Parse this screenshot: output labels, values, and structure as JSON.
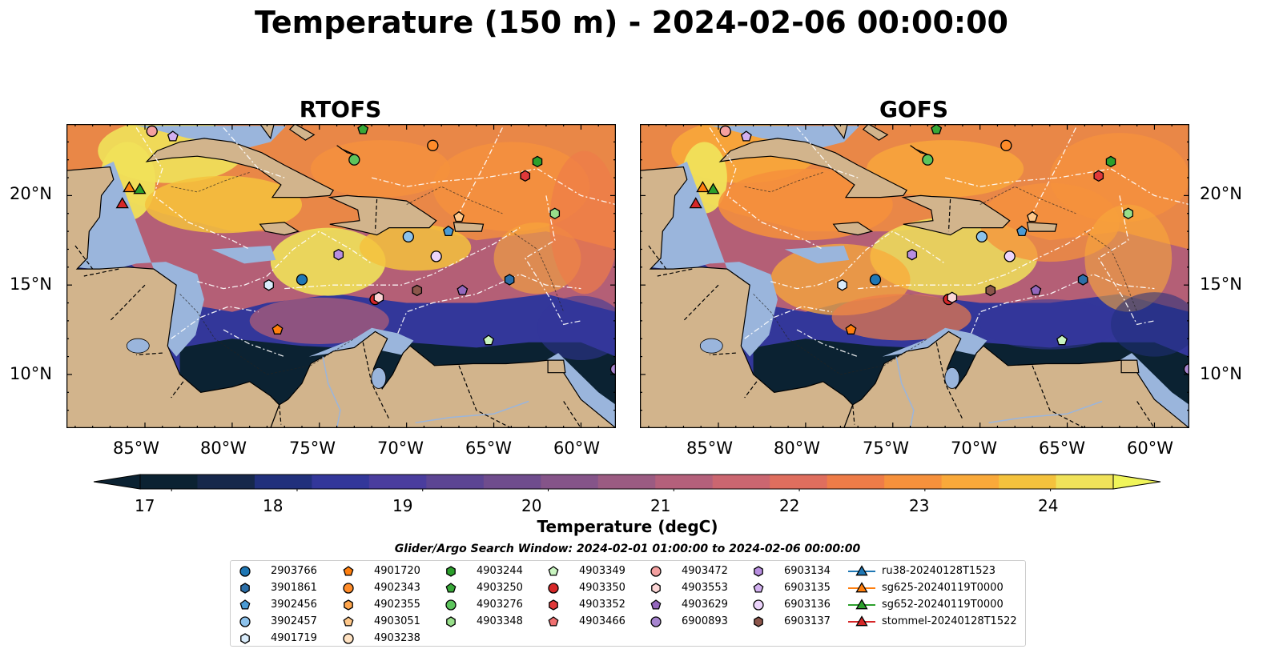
{
  "figure": {
    "title": "Temperature (150 m) - 2024-02-06 00:00:00"
  },
  "panels": [
    {
      "title": "RTOFS"
    },
    {
      "title": "GOFS"
    }
  ],
  "map": {
    "lon_range": [
      -89.5,
      -58.0
    ],
    "lat_range": [
      7.0,
      24.0
    ],
    "lon_ticks": [
      "85°W",
      "80°W",
      "75°W",
      "70°W",
      "65°W",
      "60°W"
    ],
    "lat_ticks": [
      "20°N",
      "15°N",
      "10°N"
    ],
    "land_color": "#d2b48c",
    "shelf_color": "#9ab5dc",
    "deep_color": "#071f2e"
  },
  "colorbar": {
    "label": "Temperature (degC)",
    "ticks": [
      "17",
      "18",
      "19",
      "20",
      "21",
      "22",
      "23",
      "24"
    ],
    "range": [
      16.75,
      24.5
    ],
    "colors": [
      "#0b2232",
      "#16284b",
      "#21307c",
      "#33379a",
      "#4a3d9e",
      "#5c4593",
      "#6f4c8d",
      "#855489",
      "#9b5b82",
      "#b4607b",
      "#cb6670",
      "#df6e5e",
      "#ee7c48",
      "#f6913c",
      "#f9a93a",
      "#f4c23d",
      "#f0e25a"
    ],
    "extend": "both"
  },
  "search_window": "Glider/Argo Search Window: 2024-02-01 01:00:00 to 2024-02-06 00:00:00",
  "legend": {
    "columns": [
      [
        {
          "id": "2903766",
          "marker": "circle",
          "color": "#1f77b4"
        },
        {
          "id": "3901861",
          "marker": "hexagon",
          "color": "#2c6fa8"
        },
        {
          "id": "3902456",
          "marker": "pentagon",
          "color": "#4b9bd4"
        },
        {
          "id": "3902457",
          "marker": "circle",
          "color": "#8cc2ec"
        },
        {
          "id": "4901719",
          "marker": "hexagon",
          "color": "#d9ecfb"
        }
      ],
      [
        {
          "id": "4901720",
          "marker": "pentagon",
          "color": "#ff7f0e"
        },
        {
          "id": "4902343",
          "marker": "circle",
          "color": "#ff8c2a"
        },
        {
          "id": "4902355",
          "marker": "hexagon",
          "color": "#ffa64d"
        },
        {
          "id": "4903051",
          "marker": "pentagon",
          "color": "#ffc88a"
        },
        {
          "id": "4903238",
          "marker": "circle",
          "color": "#ffe2c2"
        }
      ],
      [
        {
          "id": "4903244",
          "marker": "hexagon",
          "color": "#2ca02c"
        },
        {
          "id": "4903250",
          "marker": "pentagon",
          "color": "#38a838"
        },
        {
          "id": "4903276",
          "marker": "circle",
          "color": "#5cc45c"
        },
        {
          "id": "4903348",
          "marker": "hexagon",
          "color": "#98df8a"
        }
      ],
      [
        {
          "id": "4903349",
          "marker": "pentagon",
          "color": "#c9f5c0"
        },
        {
          "id": "4903350",
          "marker": "circle",
          "color": "#d62728"
        },
        {
          "id": "4903352",
          "marker": "hexagon",
          "color": "#e0393a"
        },
        {
          "id": "4903466",
          "marker": "pentagon",
          "color": "#f07070"
        }
      ],
      [
        {
          "id": "4903472",
          "marker": "circle",
          "color": "#f4a0a0"
        },
        {
          "id": "4903553",
          "marker": "hexagon",
          "color": "#fcd6d6"
        },
        {
          "id": "4903629",
          "marker": "pentagon",
          "color": "#9467bd"
        },
        {
          "id": "6900893",
          "marker": "circle",
          "color": "#a785d0"
        }
      ],
      [
        {
          "id": "6903134",
          "marker": "hexagon",
          "color": "#b88ee0"
        },
        {
          "id": "6903135",
          "marker": "pentagon",
          "color": "#d2b0f0"
        },
        {
          "id": "6903136",
          "marker": "circle",
          "color": "#ecd4fb"
        },
        {
          "id": "6903137",
          "marker": "hexagon",
          "color": "#8c564b"
        }
      ],
      [
        {
          "id": "ru38-20240128T1523",
          "marker": "triangle-line",
          "color": "#1f77b4"
        },
        {
          "id": "sg625-20240119T0000",
          "marker": "triangle-line",
          "color": "#ff7f0e"
        },
        {
          "id": "sg652-20240119T0000",
          "marker": "triangle-line",
          "color": "#2ca02c"
        },
        {
          "id": "stommel-20240128T1522",
          "marker": "triangle-line",
          "color": "#d62728"
        }
      ]
    ]
  },
  "observations": [
    {
      "id": "2903766",
      "lon": -76.0,
      "lat": 15.3
    },
    {
      "id": "3901861",
      "lon": -64.1,
      "lat": 15.3
    },
    {
      "id": "3902456",
      "lon": -67.6,
      "lat": 18.0
    },
    {
      "id": "3902457",
      "lon": -69.9,
      "lat": 17.7
    },
    {
      "id": "4901719",
      "lon": -77.9,
      "lat": 15.0
    },
    {
      "id": "4901720",
      "lon": -77.4,
      "lat": 12.5
    },
    {
      "id": "4902343",
      "lon": -68.5,
      "lat": 22.8
    },
    {
      "id": "4903051",
      "lon": -67.0,
      "lat": 18.8
    },
    {
      "id": "4903244",
      "lon": -62.5,
      "lat": 21.9
    },
    {
      "id": "4903250",
      "lon": -72.5,
      "lat": 23.7
    },
    {
      "id": "4903276",
      "lon": -73.0,
      "lat": 22.0
    },
    {
      "id": "4903348",
      "lon": -61.5,
      "lat": 19.0
    },
    {
      "id": "4903349",
      "lon": -65.3,
      "lat": 11.9
    },
    {
      "id": "4903350",
      "lon": -71.8,
      "lat": 14.2
    },
    {
      "id": "4903352",
      "lon": -63.2,
      "lat": 21.1
    },
    {
      "id": "4903472",
      "lon": -84.6,
      "lat": 23.6
    },
    {
      "id": "4903553",
      "lon": -71.6,
      "lat": 14.3
    },
    {
      "id": "4903629",
      "lon": -66.8,
      "lat": 14.7
    },
    {
      "id": "6903134",
      "lon": -73.9,
      "lat": 16.7
    },
    {
      "id": "6903135",
      "lon": -83.4,
      "lat": 23.3
    },
    {
      "id": "6903136",
      "lon": -68.3,
      "lat": 16.6
    },
    {
      "id": "6903137",
      "lon": -69.4,
      "lat": 14.7
    },
    {
      "id": "6900893",
      "lon": -58.0,
      "lat": 10.3
    }
  ],
  "gliders": [
    {
      "id": "sg625-20240119T0000",
      "lon": -85.9,
      "lat": 20.4
    },
    {
      "id": "sg652-20240119T0000",
      "lon": -85.3,
      "lat": 20.3
    },
    {
      "id": "stommel-20240128T1522",
      "lon": -86.3,
      "lat": 19.5
    }
  ]
}
